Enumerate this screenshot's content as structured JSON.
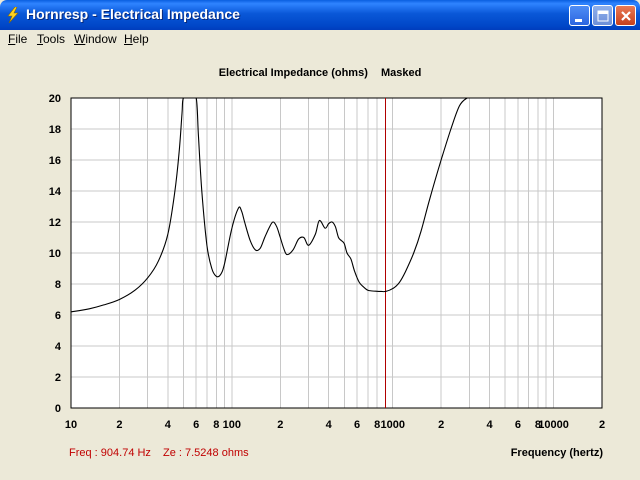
{
  "window": {
    "title": "Hornresp - Electrical Impedance",
    "icon": "lightning-icon"
  },
  "menu": {
    "items": [
      {
        "label": "File",
        "mnemonic": "F",
        "rest": "ile"
      },
      {
        "label": "Tools",
        "mnemonic": "T",
        "rest": "ools"
      },
      {
        "label": "Window",
        "mnemonic": "W",
        "rest": "indow"
      },
      {
        "label": "Help",
        "mnemonic": "H",
        "rest": "elp"
      }
    ]
  },
  "readout": {
    "freq": "Freq : 904.74 Hz",
    "ze": "Ze : 7.5248 ohms"
  },
  "chart_data": {
    "type": "line",
    "title": "Electrical Impedance (ohms)",
    "subtitle": "Masked",
    "xlabel": "Frequency (hertz)",
    "ylabel": "",
    "xscale": "log",
    "xlim": [
      10,
      20000
    ],
    "ylim": [
      0,
      20
    ],
    "yticks": [
      0,
      2,
      4,
      6,
      8,
      10,
      12,
      14,
      16,
      18,
      20
    ],
    "xtick_labels": [
      {
        "x": 10,
        "label": "10"
      },
      {
        "x": 20,
        "label": "2"
      },
      {
        "x": 40,
        "label": "4"
      },
      {
        "x": 60,
        "label": "6"
      },
      {
        "x": 80,
        "label": "8"
      },
      {
        "x": 100,
        "label": "100"
      },
      {
        "x": 200,
        "label": "2"
      },
      {
        "x": 400,
        "label": "4"
      },
      {
        "x": 600,
        "label": "6"
      },
      {
        "x": 800,
        "label": "8"
      },
      {
        "x": 1000,
        "label": "1000"
      },
      {
        "x": 2000,
        "label": "2"
      },
      {
        "x": 4000,
        "label": "4"
      },
      {
        "x": 6000,
        "label": "6"
      },
      {
        "x": 8000,
        "label": "8"
      },
      {
        "x": 10000,
        "label": "10000"
      },
      {
        "x": 20000,
        "label": "2"
      }
    ],
    "grid": true,
    "cursor_freq": 904.74,
    "colors": {
      "line": "#000000",
      "cursor": "#b00000",
      "grid": "#c8c8c8",
      "readout": "#c00000"
    },
    "series": [
      {
        "x": [
          10,
          13,
          16,
          20,
          25,
          30,
          35,
          40,
          44,
          47,
          49,
          50,
          55,
          60,
          62,
          65,
          70,
          75,
          80,
          85,
          90,
          100,
          110,
          115,
          120,
          130,
          140,
          150,
          160,
          170,
          180,
          190,
          200,
          210,
          220,
          240,
          260,
          280,
          300,
          330,
          350,
          380,
          400,
          420,
          440,
          460,
          480,
          500,
          520,
          550,
          580,
          620,
          660,
          700,
          750,
          800,
          850,
          905,
          1000,
          1100,
          1200,
          1350,
          1500,
          1700,
          2000,
          2300,
          2600,
          2900,
          3100
        ],
        "y": [
          6.2,
          6.4,
          6.65,
          7.0,
          7.6,
          8.4,
          9.5,
          11.2,
          13.8,
          16.5,
          19.0,
          20.0,
          20.0,
          20.0,
          17.5,
          14.0,
          10.5,
          9.0,
          8.5,
          8.6,
          9.3,
          11.6,
          12.9,
          12.7,
          12.0,
          10.8,
          10.2,
          10.3,
          11.0,
          11.6,
          12.0,
          11.7,
          11.0,
          10.3,
          9.9,
          10.2,
          10.9,
          11.0,
          10.5,
          11.2,
          12.1,
          11.6,
          11.9,
          12.0,
          11.7,
          11.0,
          10.8,
          10.6,
          10.0,
          9.6,
          8.8,
          8.1,
          7.8,
          7.6,
          7.55,
          7.53,
          7.52,
          7.52,
          7.7,
          8.1,
          8.8,
          10.0,
          11.4,
          13.5,
          16.0,
          18.0,
          19.5,
          20.0,
          20.0
        ]
      }
    ]
  }
}
